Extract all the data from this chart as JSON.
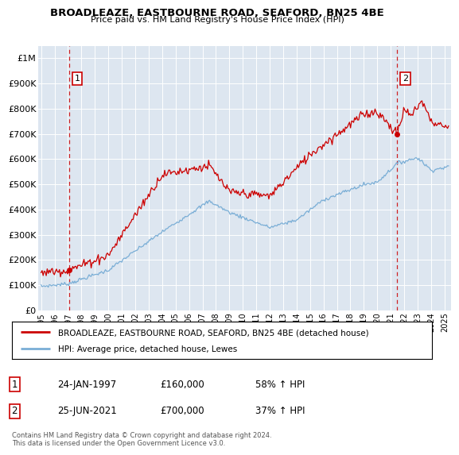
{
  "title": "BROADLEAZE, EASTBOURNE ROAD, SEAFORD, BN25 4BE",
  "subtitle": "Price paid vs. HM Land Registry's House Price Index (HPI)",
  "ylabel_ticks": [
    "£0",
    "£100K",
    "£200K",
    "£300K",
    "£400K",
    "£500K",
    "£600K",
    "£700K",
    "£800K",
    "£900K",
    "£1M"
  ],
  "ytick_values": [
    0,
    100000,
    200000,
    300000,
    400000,
    500000,
    600000,
    700000,
    800000,
    900000,
    1000000
  ],
  "ylim": [
    0,
    1050000
  ],
  "xlim_start": 1994.8,
  "xlim_end": 2025.5,
  "background_color": "#dde6f0",
  "grid_color": "#ffffff",
  "red_line_color": "#cc0000",
  "blue_line_color": "#7aaed6",
  "ann1_x": 1997.07,
  "ann1_y": 160000,
  "ann1_label": "1",
  "ann1_date": "24-JAN-1997",
  "ann1_price": "£160,000",
  "ann1_hpi": "58% ↑ HPI",
  "ann2_x": 2021.48,
  "ann2_y": 700000,
  "ann2_label": "2",
  "ann2_date": "25-JUN-2021",
  "ann2_price": "£700,000",
  "ann2_hpi": "37% ↑ HPI",
  "legend_line1": "BROADLEAZE, EASTBOURNE ROAD, SEAFORD, BN25 4BE (detached house)",
  "legend_line2": "HPI: Average price, detached house, Lewes",
  "footer": "Contains HM Land Registry data © Crown copyright and database right 2024.\nThis data is licensed under the Open Government Licence v3.0.",
  "xtick_years": [
    1995,
    1996,
    1997,
    1998,
    1999,
    2000,
    2001,
    2002,
    2003,
    2004,
    2005,
    2006,
    2007,
    2008,
    2009,
    2010,
    2011,
    2012,
    2013,
    2014,
    2015,
    2016,
    2017,
    2018,
    2019,
    2020,
    2021,
    2022,
    2023,
    2024,
    2025
  ]
}
